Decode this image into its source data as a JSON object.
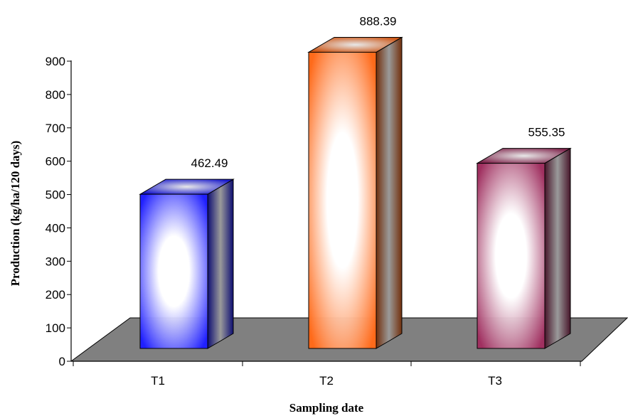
{
  "chart_data": {
    "type": "bar",
    "categories": [
      "T1",
      "T2",
      "T3"
    ],
    "values": [
      462.49,
      888.39,
      555.35
    ],
    "data_labels": [
      "462.49",
      "888.39",
      "555.35"
    ],
    "ylabel": "Production (kg/ha/120 days)",
    "xlabel": "Sampling date",
    "ylim": [
      0,
      900
    ],
    "yticks": [
      0,
      100,
      200,
      300,
      400,
      500,
      600,
      700,
      800,
      900
    ],
    "bar_colors": [
      "#2020ff",
      "#ff6a1a",
      "#a03060"
    ],
    "floor_color": "#808080",
    "grid": false,
    "legend": false
  }
}
